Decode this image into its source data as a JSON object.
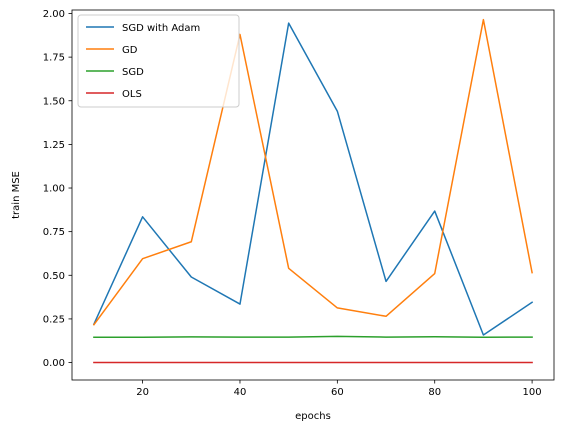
{
  "chart_data": {
    "type": "line",
    "title": "",
    "xlabel": "epochs",
    "ylabel": "train MSE",
    "x": [
      10,
      20,
      30,
      40,
      50,
      60,
      70,
      80,
      90,
      100
    ],
    "xlim": [
      5.5,
      104.5
    ],
    "ylim": [
      -0.1,
      2.02
    ],
    "xticks": [
      20,
      40,
      60,
      80,
      100
    ],
    "yticks": [
      0.0,
      0.25,
      0.5,
      0.75,
      1.0,
      1.25,
      1.5,
      1.75,
      2.0
    ],
    "ytick_labels": [
      "0.00",
      "0.25",
      "0.50",
      "0.75",
      "1.00",
      "1.25",
      "1.50",
      "1.75",
      "2.00"
    ],
    "grid": false,
    "legend_position": "top-left",
    "series": [
      {
        "name": "SGD with Adam",
        "color": "#1f77b4",
        "values": [
          0.22,
          0.835,
          0.49,
          0.335,
          1.945,
          1.44,
          0.465,
          0.868,
          0.158,
          0.345
        ]
      },
      {
        "name": "GD",
        "color": "#ff7f0e",
        "values": [
          0.217,
          0.595,
          0.692,
          1.88,
          0.54,
          0.313,
          0.265,
          0.51,
          1.965,
          0.515
        ]
      },
      {
        "name": "SGD",
        "color": "#2ca02c",
        "values": [
          0.145,
          0.145,
          0.147,
          0.146,
          0.146,
          0.15,
          0.146,
          0.148,
          0.145,
          0.146
        ]
      },
      {
        "name": "OLS",
        "color": "#d62728",
        "values": [
          0.0,
          0.0,
          0.0,
          0.0,
          0.0,
          0.0,
          0.0,
          0.0,
          0.0,
          0.0
        ]
      }
    ]
  }
}
